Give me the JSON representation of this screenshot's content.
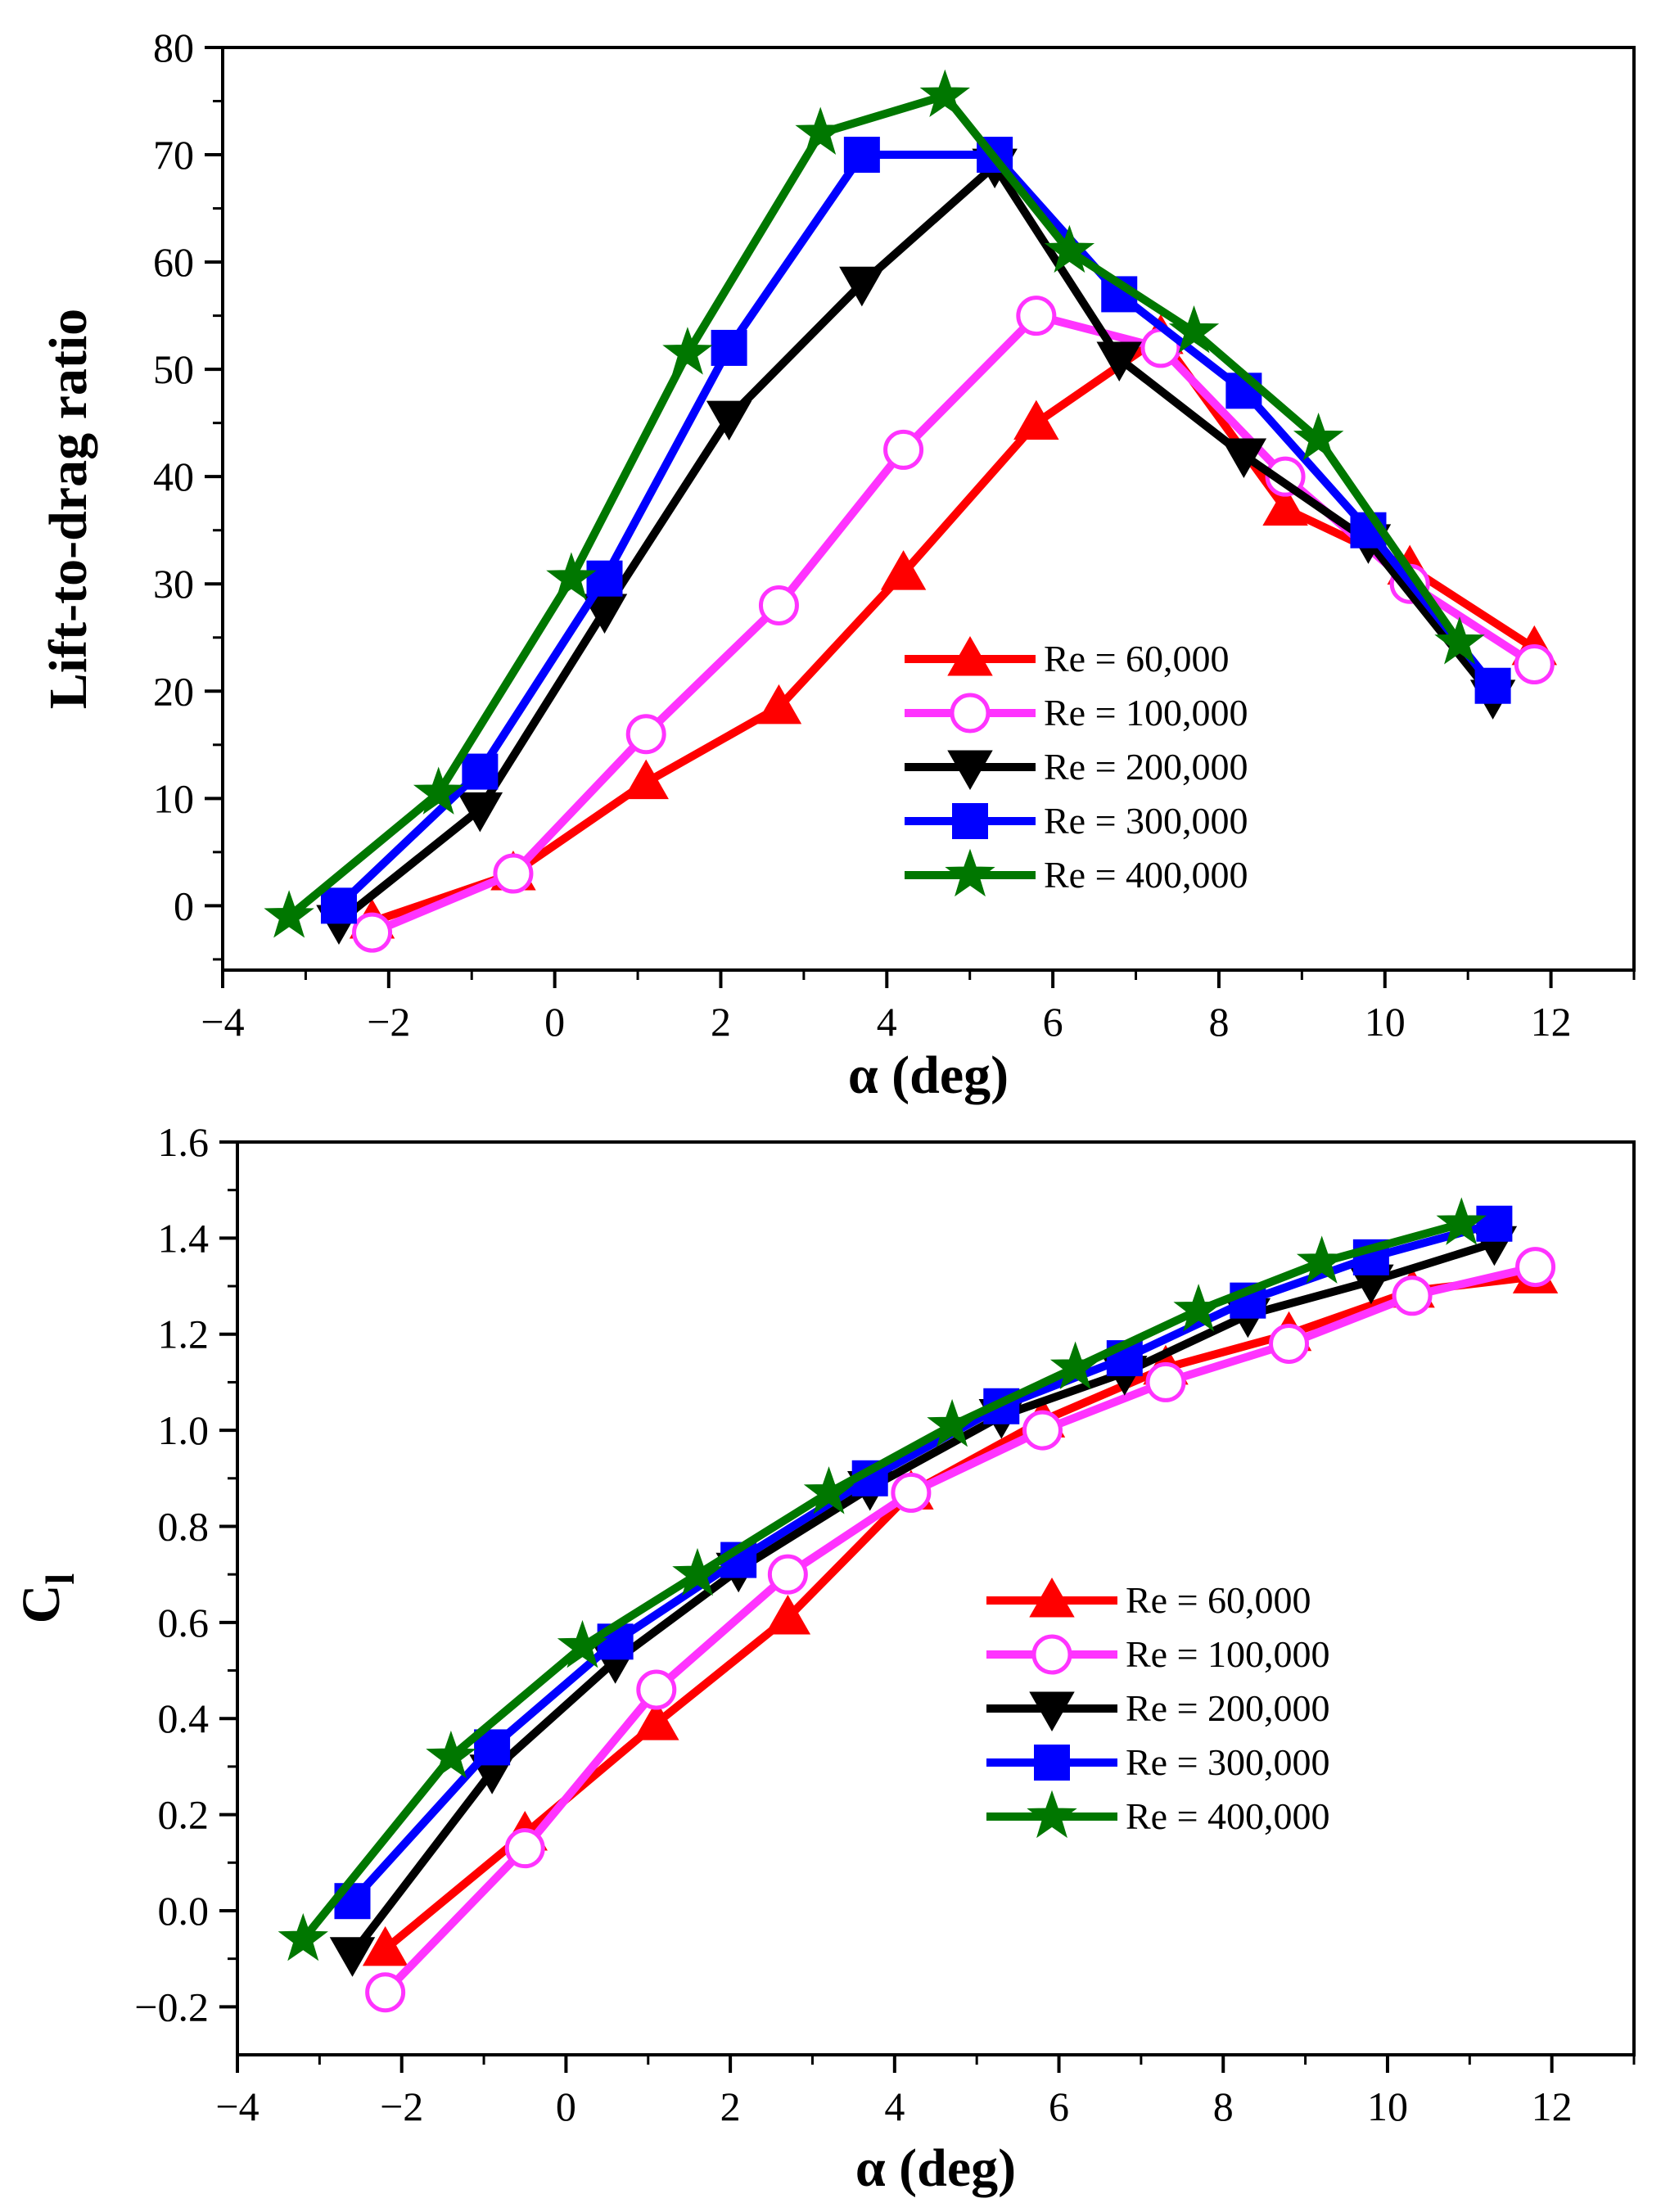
{
  "chart_data": [
    {
      "type": "line",
      "xlabel": "α (deg)",
      "ylabel": "Lift-to-drag ratio",
      "xlim": [
        -4,
        13
      ],
      "ylim": [
        -6,
        80
      ],
      "xticks": [
        -4,
        -2,
        0,
        2,
        4,
        6,
        8,
        10,
        12
      ],
      "xtick_labels": [
        "−4",
        "−2",
        "0",
        "2",
        "4",
        "6",
        "8",
        "10",
        "12"
      ],
      "yticks": [
        0,
        10,
        20,
        30,
        40,
        50,
        60,
        70,
        80
      ],
      "ytick_labels": [
        "0",
        "10",
        "20",
        "30",
        "40",
        "50",
        "60",
        "70",
        "80"
      ],
      "legend_position": "lower-right",
      "series": [
        {
          "name": "Re = 60,000",
          "color": "#ff0000",
          "marker": "triangle-up",
          "filled": true,
          "x": [
            -2.2,
            -0.5,
            1.1,
            2.7,
            4.2,
            5.8,
            7.3,
            8.8,
            10.3,
            11.8
          ],
          "y": [
            -1.5,
            3.0,
            11.5,
            18.5,
            31.0,
            45.0,
            53.0,
            37.0,
            31.5,
            24.0
          ]
        },
        {
          "name": "Re = 100,000",
          "color": "#ff33ff",
          "marker": "circle",
          "filled": false,
          "x": [
            -2.2,
            -0.5,
            1.1,
            2.7,
            4.2,
            5.8,
            7.3,
            8.8,
            10.3,
            11.8
          ],
          "y": [
            -2.5,
            3.0,
            16.0,
            28.0,
            42.5,
            55.0,
            52.0,
            40.0,
            30.0,
            22.5
          ]
        },
        {
          "name": "Re = 200,000",
          "color": "#000000",
          "marker": "triangle-down",
          "filled": true,
          "x": [
            -2.6,
            -0.9,
            0.6,
            2.1,
            3.7,
            5.3,
            6.8,
            8.3,
            9.8,
            11.3
          ],
          "y": [
            -1.5,
            9.0,
            27.5,
            45.5,
            58.0,
            69.0,
            51.0,
            42.0,
            34.0,
            19.5
          ]
        },
        {
          "name": "Re = 300,000",
          "color": "#0000ff",
          "marker": "square",
          "filled": true,
          "x": [
            -2.6,
            -0.9,
            0.6,
            2.1,
            3.7,
            5.3,
            6.8,
            8.3,
            9.8,
            11.3
          ],
          "y": [
            0.0,
            12.5,
            30.5,
            52.0,
            70.0,
            70.0,
            57.0,
            48.0,
            35.0,
            20.5
          ]
        },
        {
          "name": "Re = 400,000",
          "color": "#007700",
          "marker": "star",
          "filled": true,
          "x": [
            -3.2,
            -1.4,
            0.2,
            1.6,
            3.2,
            4.7,
            6.2,
            7.7,
            9.2,
            10.9
          ],
          "y": [
            -1.0,
            10.5,
            30.5,
            51.5,
            72.0,
            75.5,
            61.0,
            53.5,
            43.5,
            24.5
          ]
        }
      ]
    },
    {
      "type": "line",
      "xlabel": "α (deg)",
      "ylabel": "C",
      "ylabel_sub": "l",
      "xlim": [
        -4,
        13
      ],
      "ylim": [
        -0.3,
        1.6
      ],
      "xticks": [
        -4,
        -2,
        0,
        2,
        4,
        6,
        8,
        10,
        12
      ],
      "xtick_labels": [
        "−4",
        "−2",
        "0",
        "2",
        "4",
        "6",
        "8",
        "10",
        "12"
      ],
      "yticks": [
        -0.2,
        0.0,
        0.2,
        0.4,
        0.6,
        0.8,
        1.0,
        1.2,
        1.4,
        1.6
      ],
      "ytick_labels": [
        "−0.2",
        "0.0",
        "0.2",
        "0.4",
        "0.6",
        "0.8",
        "1.0",
        "1.2",
        "1.4",
        "1.6"
      ],
      "legend_position": "lower-right",
      "series": [
        {
          "name": "Re = 60,000",
          "color": "#ff0000",
          "marker": "triangle-up",
          "filled": true,
          "x": [
            -2.2,
            -0.5,
            1.1,
            2.7,
            4.2,
            5.8,
            7.3,
            8.8,
            10.3,
            11.8
          ],
          "y": [
            -0.08,
            0.16,
            0.39,
            0.61,
            0.87,
            1.02,
            1.13,
            1.2,
            1.29,
            1.32
          ]
        },
        {
          "name": "Re = 100,000",
          "color": "#ff33ff",
          "marker": "circle",
          "filled": false,
          "x": [
            -2.2,
            -0.5,
            1.1,
            2.7,
            4.2,
            5.8,
            7.3,
            8.8,
            10.3,
            11.8
          ],
          "y": [
            -0.17,
            0.13,
            0.46,
            0.7,
            0.87,
            1.0,
            1.1,
            1.18,
            1.28,
            1.34
          ]
        },
        {
          "name": "Re = 200,000",
          "color": "#000000",
          "marker": "triangle-down",
          "filled": true,
          "x": [
            -2.6,
            -0.9,
            0.6,
            2.1,
            3.7,
            5.3,
            6.8,
            8.3,
            9.8,
            11.3
          ],
          "y": [
            -0.09,
            0.29,
            0.52,
            0.71,
            0.88,
            1.03,
            1.12,
            1.24,
            1.31,
            1.39
          ]
        },
        {
          "name": "Re = 300,000",
          "color": "#0000ff",
          "marker": "square",
          "filled": true,
          "x": [
            -2.6,
            -0.9,
            0.6,
            2.1,
            3.7,
            5.3,
            6.8,
            8.3,
            9.8,
            11.3
          ],
          "y": [
            0.02,
            0.34,
            0.56,
            0.73,
            0.9,
            1.05,
            1.15,
            1.27,
            1.36,
            1.43
          ]
        },
        {
          "name": "Re = 400,000",
          "color": "#007700",
          "marker": "star",
          "filled": true,
          "x": [
            -3.2,
            -1.4,
            0.2,
            1.6,
            3.2,
            4.7,
            6.2,
            7.7,
            9.2,
            10.9
          ],
          "y": [
            -0.06,
            0.32,
            0.55,
            0.7,
            0.87,
            1.01,
            1.13,
            1.25,
            1.35,
            1.43
          ]
        }
      ]
    }
  ]
}
